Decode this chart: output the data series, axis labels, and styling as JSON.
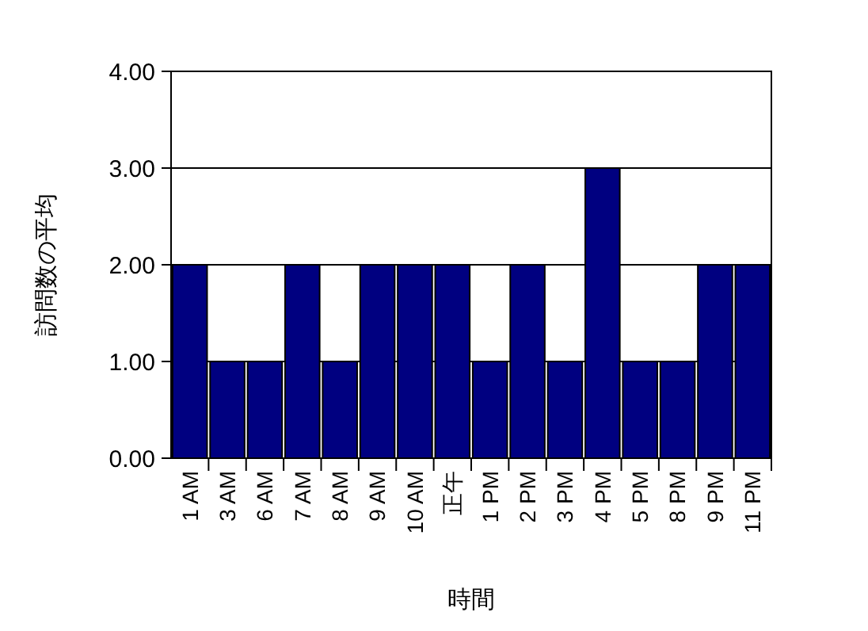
{
  "chart_data": {
    "type": "bar",
    "xlabel": "時間",
    "ylabel": "訪問数の平均",
    "categories": [
      "1 AM",
      "3 AM",
      "6 AM",
      "7 AM",
      "8 AM",
      "9 AM",
      "10 AM",
      "正午",
      "1 PM",
      "2 PM",
      "3 PM",
      "4 PM",
      "5 PM",
      "8 PM",
      "9 PM",
      "11 PM"
    ],
    "values": [
      2,
      1,
      1,
      2,
      1,
      2,
      2,
      2,
      1,
      2,
      1,
      3,
      1,
      1,
      2,
      2
    ],
    "color": "#000080",
    "ylim": [
      0,
      4
    ],
    "yticks": [
      {
        "value": 0,
        "label": "0.00"
      },
      {
        "value": 1,
        "label": "1.00"
      },
      {
        "value": 2,
        "label": "2.00"
      },
      {
        "value": 3,
        "label": "3.00"
      },
      {
        "value": 4,
        "label": "4.00"
      }
    ],
    "grid": "y"
  }
}
